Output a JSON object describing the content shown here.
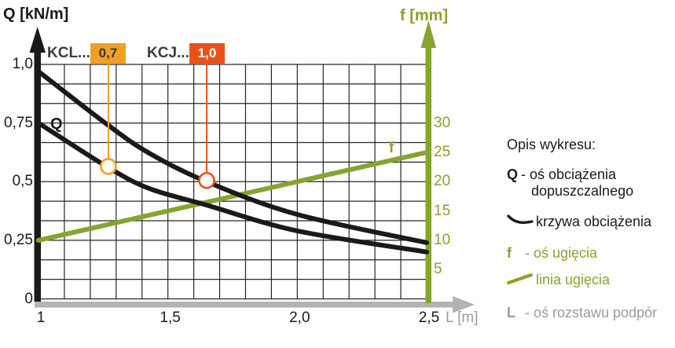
{
  "colors": {
    "green": "#85A430",
    "orange_badge": "#F2A024",
    "red_orange_badge": "#E8521A",
    "curve_black": "#1A1A1A",
    "axis_gray": "#B3B3B3",
    "gray_text": "#9B9B9B"
  },
  "header": {
    "q_axis_title": "Q [kN/m]",
    "f_axis_title": "f [mm]",
    "l_axis_title": "L [m]"
  },
  "series_labels": {
    "kcl": {
      "name": "KCL...",
      "badge": "0,7"
    },
    "kcj": {
      "name": "KCJ...",
      "badge": "1,0"
    }
  },
  "plot_annotations": {
    "q_curve_label": "Q",
    "f_line_label": "f"
  },
  "chart_data": {
    "type": "line",
    "title": "",
    "x_axis": {
      "label": "L [m]",
      "range": [
        1,
        2.5
      ],
      "grid_step": 0.1,
      "ticks": [
        {
          "label": "1",
          "value": 1
        },
        {
          "label": "1,5",
          "value": 1.5
        },
        {
          "label": "2,0",
          "value": 2.0
        },
        {
          "label": "2,5",
          "value": 2.5
        }
      ]
    },
    "y_axis_left": {
      "label": "Q [kN/m]",
      "range": [
        0,
        1
      ],
      "grid_divisions": 12,
      "ticks": [
        {
          "label": "0",
          "value": 0
        },
        {
          "label": "0,25",
          "value": 0.25
        },
        {
          "label": "0,5",
          "value": 0.5
        },
        {
          "label": "0,75",
          "value": 0.75
        },
        {
          "label": "1,0",
          "value": 1.0
        }
      ]
    },
    "y_axis_right": {
      "label": "f [mm]",
      "range": [
        0,
        40
      ],
      "ticks": [
        {
          "label": "5",
          "value": 5
        },
        {
          "label": "10",
          "value": 10
        },
        {
          "label": "15",
          "value": 15
        },
        {
          "label": "20",
          "value": 20
        },
        {
          "label": "25",
          "value": 25
        },
        {
          "label": "30",
          "value": 30
        }
      ]
    },
    "series": [
      {
        "name": "KCJ... 1,0",
        "axis": "left",
        "color": "#1A1A1A",
        "width": 6,
        "points": [
          [
            1.0,
            0.97
          ],
          [
            1.27,
            0.74
          ],
          [
            1.43,
            0.62
          ],
          [
            1.65,
            0.5
          ],
          [
            2.0,
            0.36
          ],
          [
            2.5,
            0.24
          ]
        ]
      },
      {
        "name": "KCL... 0,7",
        "axis": "left",
        "color": "#1A1A1A",
        "width": 6,
        "points": [
          [
            1.0,
            0.75
          ],
          [
            1.27,
            0.56
          ],
          [
            1.43,
            0.47
          ],
          [
            1.65,
            0.4
          ],
          [
            2.0,
            0.29
          ],
          [
            2.5,
            0.2
          ]
        ]
      },
      {
        "name": "linia ugięcia (f)",
        "axis": "right",
        "color": "#85A430",
        "width": 6,
        "points": [
          [
            1.0,
            10
          ],
          [
            2.5,
            25
          ]
        ]
      }
    ],
    "markers": [
      {
        "label": "0,7",
        "series": "KCL... 0,7",
        "L": 1.27,
        "Q": 0.565,
        "color": "#F2A024"
      },
      {
        "label": "1,0",
        "series": "KCJ... 1,0",
        "L": 1.65,
        "Q": 0.505,
        "color": "#E8521A"
      }
    ],
    "grid": true,
    "legend_position": "right"
  },
  "legend": {
    "title": "Opis wykresu:",
    "items": [
      {
        "symbol": "Q",
        "text": "- oś obciążenia dopuszczalnego",
        "color": "black"
      },
      {
        "symbol": "curve-glyph",
        "text": "krzywa obciążenia",
        "color": "black"
      },
      {
        "symbol": "f",
        "text": "- oś ugięcia",
        "color": "green"
      },
      {
        "symbol": "line-glyph",
        "text": "linia ugięcia",
        "color": "green"
      },
      {
        "symbol": "L",
        "text": "- oś rozstawu podpór",
        "color": "gray"
      }
    ]
  }
}
